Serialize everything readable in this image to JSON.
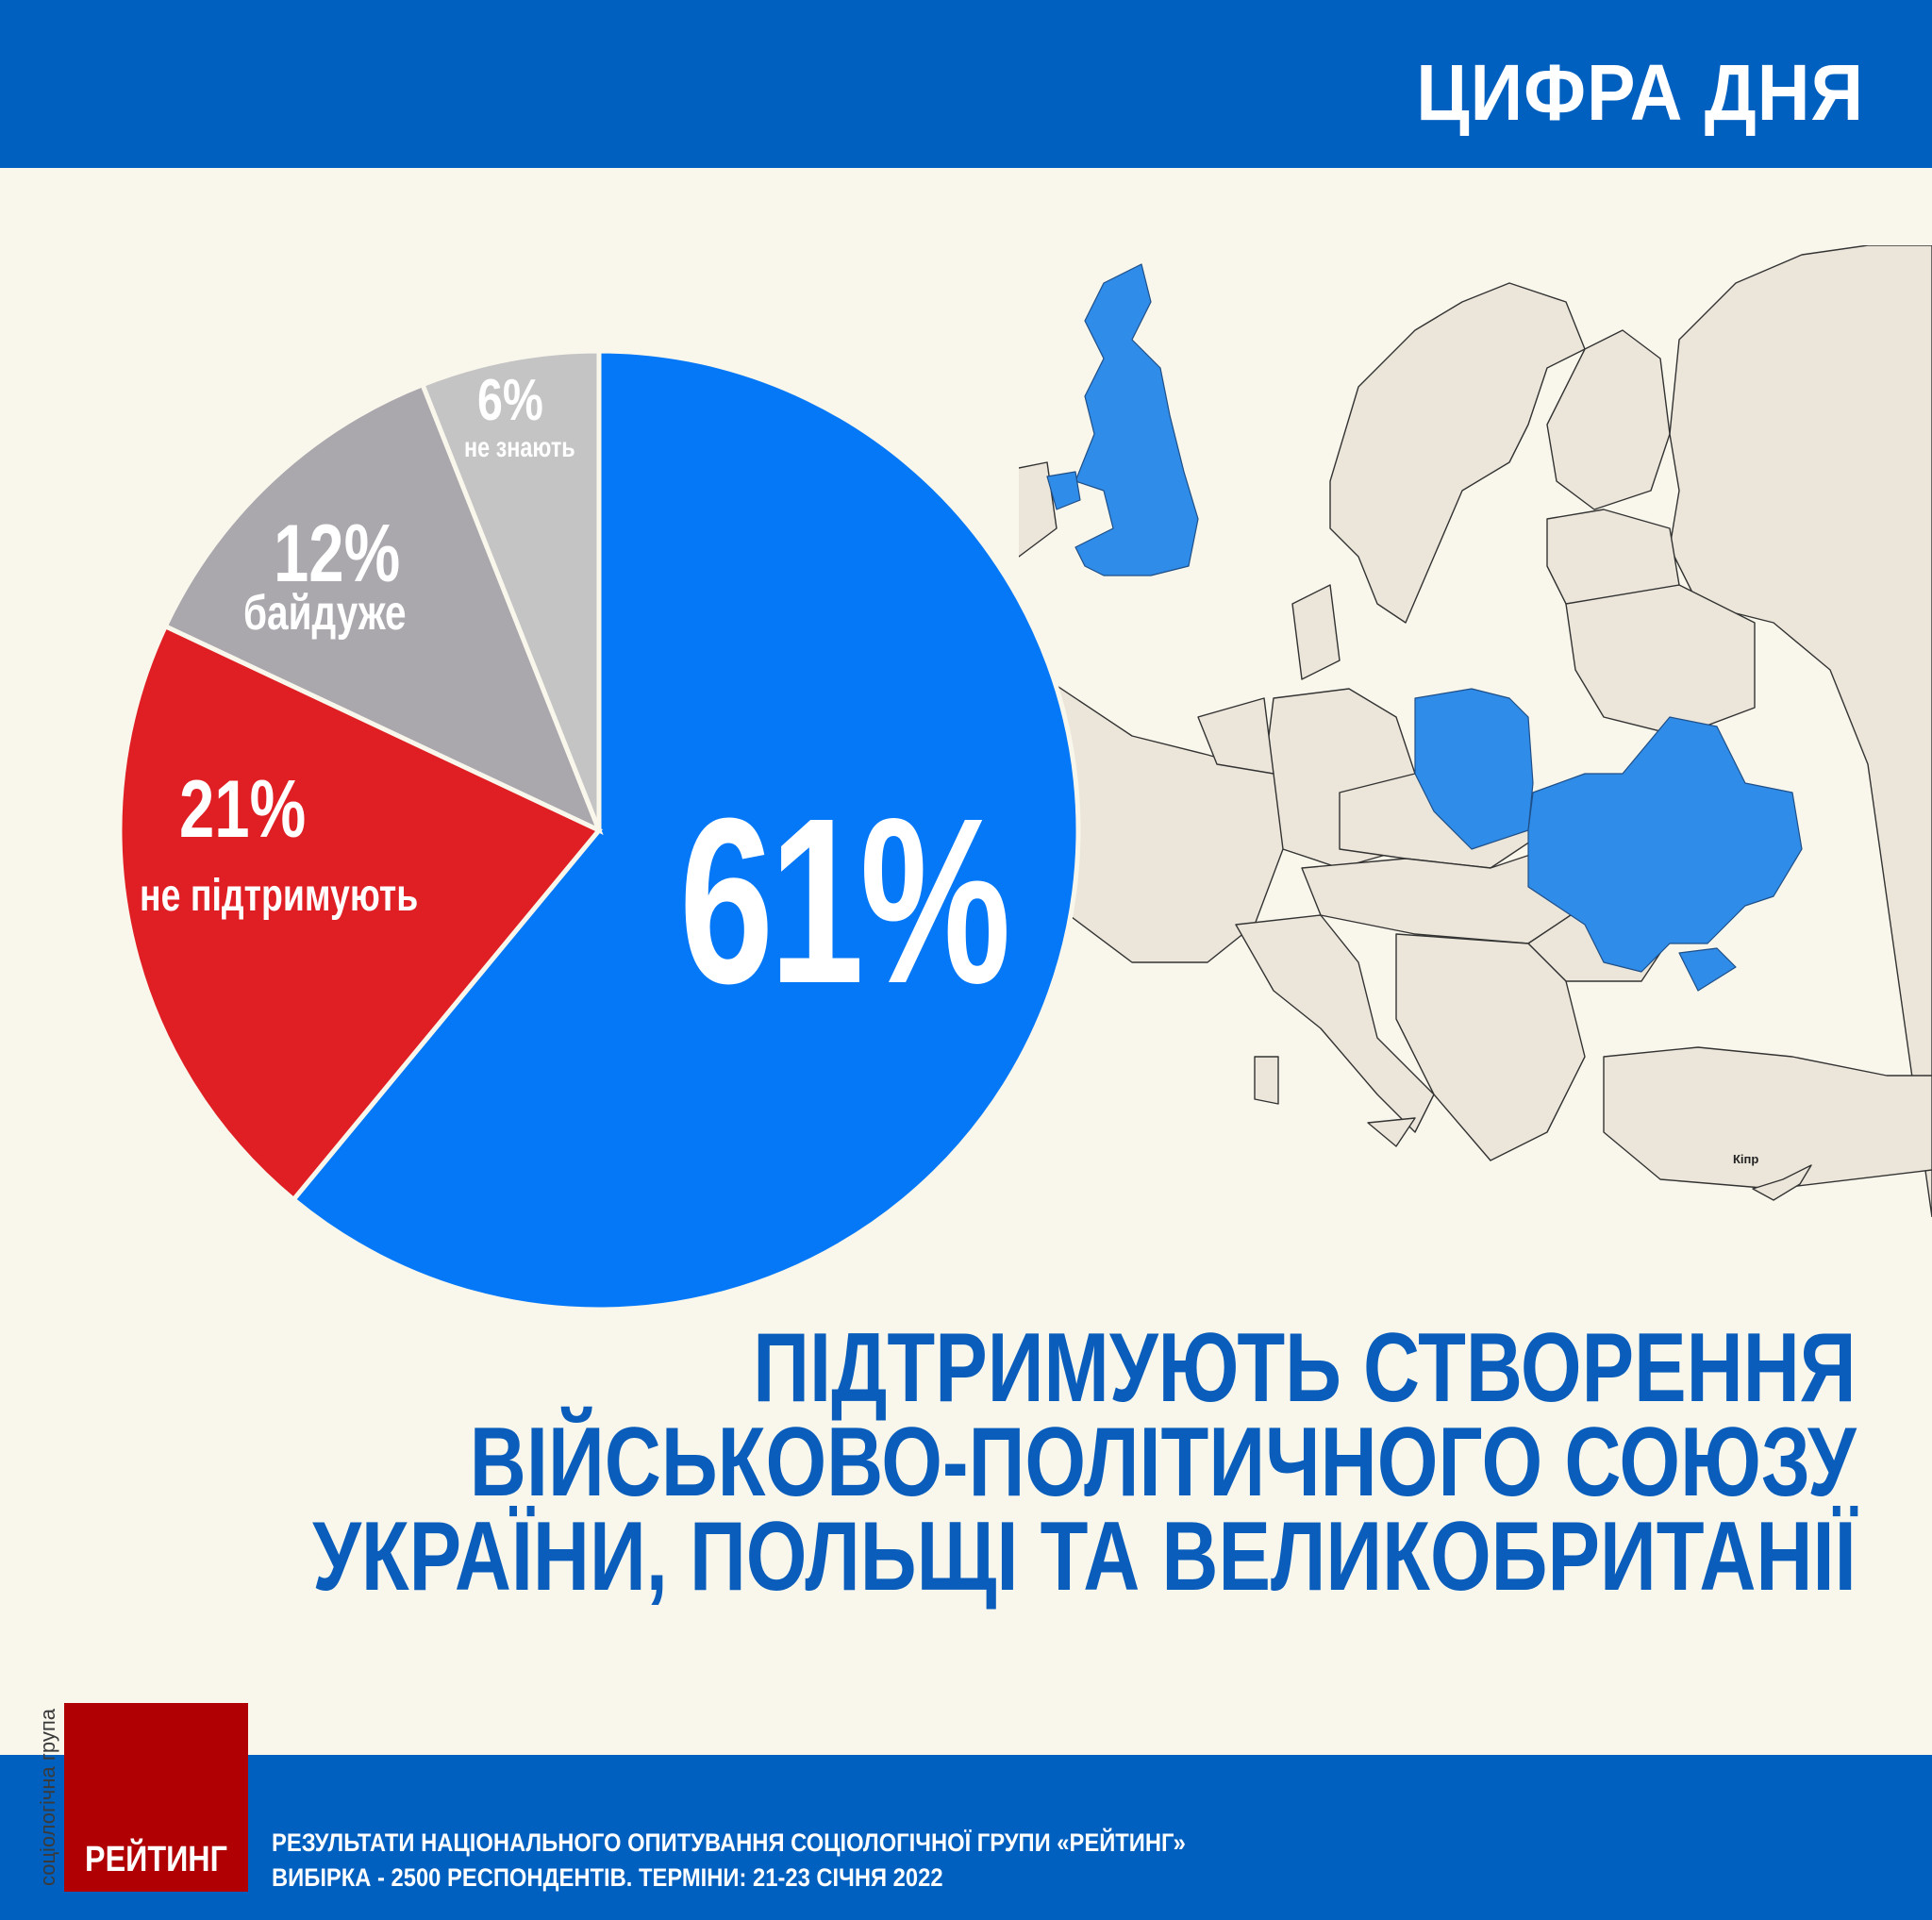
{
  "header": {
    "title": "ЦИФРА ДНЯ"
  },
  "chart_data": {
    "type": "pie",
    "title": "Підтримують створення військово-політичного союзу України, Польщі та Великобританії",
    "slices": [
      {
        "key": "support",
        "label": "підтримують",
        "value": 61,
        "display": "61%",
        "color": "#0578f7"
      },
      {
        "key": "oppose",
        "label": "не підтримують",
        "value": 21,
        "display": "21%",
        "color": "#e01f25"
      },
      {
        "key": "indifferent",
        "label": "байдуже",
        "value": 12,
        "display": "12%",
        "color": "#aaa7ad"
      },
      {
        "key": "dont_know",
        "label": "не знають",
        "value": 6,
        "display": "6%",
        "color": "#c5c4c4"
      }
    ],
    "start_angle_deg": 0,
    "direction": "clockwise",
    "center": [
      635,
      880
    ],
    "radius": 508,
    "separator_color": "#f9f7ec"
  },
  "pie_labels": {
    "support_pct": "61%",
    "oppose_pct": "21%",
    "oppose_text": "не підтримують",
    "indifferent_pct": "12%",
    "indifferent_text": "байдуже",
    "dont_know_pct": "6%",
    "dont_know_text": "не знають"
  },
  "map": {
    "highlighted_countries": [
      "Великобританія",
      "Польща",
      "Україна"
    ],
    "highlight_color": "#2f8ce8",
    "land_color": "#ece6da",
    "label_cyprus": "Кіпр"
  },
  "headline": {
    "line1": "ПІДТРИМУЮТЬ СТВОРЕННЯ",
    "line2": "ВІЙСЬКОВО-ПОЛІТИЧНОГО СОЮЗУ",
    "line3": "УКРАЇНИ, ПОЛЬЩІ ТА ВЕЛИКОБРИТАНІЇ"
  },
  "footer": {
    "logo": "РЕЙТИНГ",
    "logo_vertical": "соціологічна група",
    "line1": "РЕЗУЛЬТАТИ НАЦІОНАЛЬНОГО ОПИТУВАННЯ СОЦІОЛОГІЧНОЇ ГРУПИ «РЕЙТИНГ»",
    "line2": "ВИБІРКА - 2500 РЕСПОНДЕНТІВ. ТЕРМІНИ: 21-23 СІЧНЯ 2022"
  }
}
